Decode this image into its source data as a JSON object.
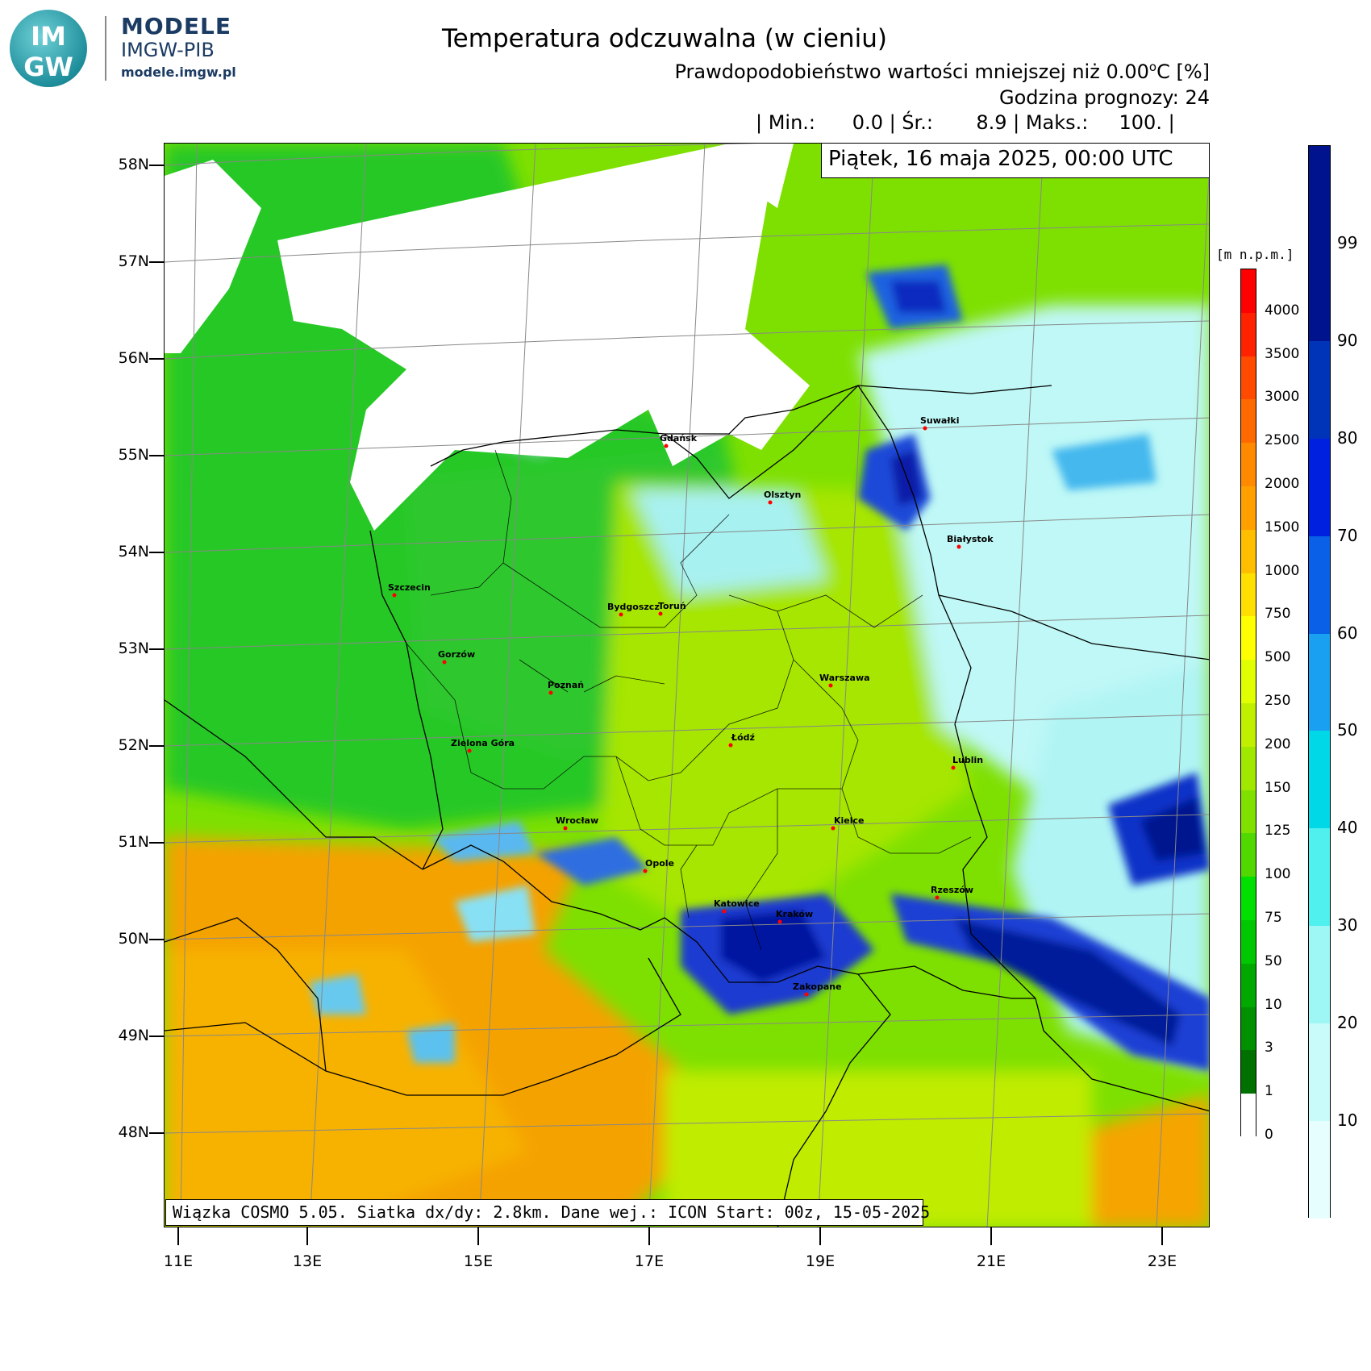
{
  "logo": {
    "letters_top": "IM",
    "letters_bottom": "GW",
    "title": "MODELE",
    "subtitle": "IMGW-PIB",
    "url": "modele.imgw.pl"
  },
  "header": {
    "title": "Temperatura odczuwalna (w cieniu)",
    "subtitle_prefix": "Prawdopodobieństwo wartości mniejszej niż 0.00",
    "subtitle_sup": "o",
    "subtitle_suffix": "C [%]",
    "forecast_hour": "Godzina prognozy: 24",
    "stats": "| Min.:      0.0 | Śr.:       8.9 | Maks.:     100. |"
  },
  "date": "Piątek, 16 maja 2025, 00:00 UTC",
  "footer": "Wiązka COSMO 5.05. Siatka dx/dy: 2.8km. Dane wej.: ICON Start: 00z, 15-05-2025",
  "lat_labels": [
    "58N",
    "57N",
    "56N",
    "55N",
    "54N",
    "53N",
    "52N",
    "51N",
    "50N",
    "49N",
    "48N"
  ],
  "lon_labels": [
    "11E",
    "13E",
    "15E",
    "17E",
    "19E",
    "21E",
    "23E"
  ],
  "cities": [
    {
      "name": "Gdańsk"
    },
    {
      "name": "Suwałki"
    },
    {
      "name": "Olsztyn"
    },
    {
      "name": "Białystok"
    },
    {
      "name": "Szczecin"
    },
    {
      "name": "Bydgoszcz"
    },
    {
      "name": "Toruń"
    },
    {
      "name": "Gorzów"
    },
    {
      "name": "Warszawa"
    },
    {
      "name": "Poznań"
    },
    {
      "name": "Łódź"
    },
    {
      "name": "Zielona Góra"
    },
    {
      "name": "Lublin"
    },
    {
      "name": "Wrocław"
    },
    {
      "name": "Kielce"
    },
    {
      "name": "Opole"
    },
    {
      "name": "Rzeszów"
    },
    {
      "name": "Katowice"
    },
    {
      "name": "Kraków"
    },
    {
      "name": "Zakopane"
    }
  ],
  "elevation_legend": {
    "unit": "[m n.p.m.]",
    "labels": [
      "4000",
      "3500",
      "3000",
      "2500",
      "2000",
      "1500",
      "1000",
      "750",
      "500",
      "250",
      "200",
      "150",
      "125",
      "100",
      "75",
      "50",
      "10",
      "3",
      "1",
      "0"
    ],
    "colors": [
      "#ff0000",
      "#ff2200",
      "#ff4a00",
      "#ff6a00",
      "#ff8a00",
      "#ffa000",
      "#ffbf00",
      "#ffe000",
      "#ffff00",
      "#e0ff00",
      "#c0f000",
      "#a0e800",
      "#80e000",
      "#50d800",
      "#00e000",
      "#00c800",
      "#00a800",
      "#009000",
      "#007000",
      "#ffffff"
    ]
  },
  "probability_legend": {
    "labels": [
      "99",
      "90",
      "80",
      "70",
      "60",
      "50",
      "40",
      "30",
      "20",
      "10"
    ],
    "colors": [
      "#00138f",
      "#0034b8",
      "#0020e0",
      "#0a60e6",
      "#1aa0f0",
      "#00d8e8",
      "#4ff0ee",
      "#9ef7f5",
      "#c8fbfa",
      "#e6fefe"
    ]
  },
  "colors": {
    "sea": "#ffffff",
    "low_land": "#32c832",
    "mid_land": "#a0e000",
    "highland": "#f5a000",
    "cold_prob": "#0020c0"
  }
}
